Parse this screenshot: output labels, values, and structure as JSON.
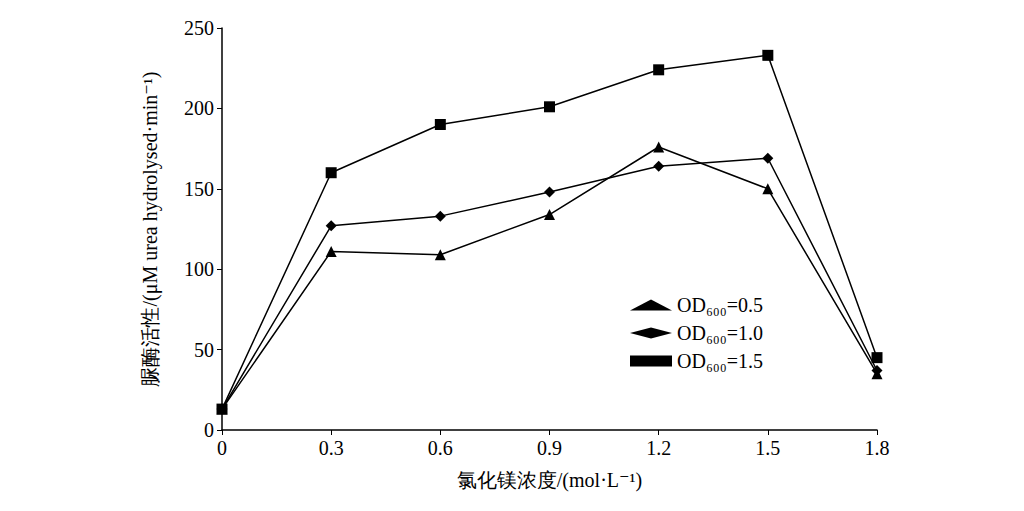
{
  "chart_data": {
    "type": "line",
    "x_label": "氯化镁浓度/(mol·L⁻¹)",
    "y_label": "脲酶活性/(μM urea hydrolysed·min⁻¹)",
    "categories": [
      "0",
      "0.3",
      "0.6",
      "0.9",
      "1.2",
      "1.5",
      "1.8"
    ],
    "ylim": [
      0,
      250
    ],
    "yticks": [
      0,
      50,
      100,
      150,
      200,
      250
    ],
    "grid": false,
    "legend": "lower right",
    "series": [
      {
        "name": "OD₆₀₀=0.5",
        "color": "#000000",
        "marker": "triangle",
        "line_style": "solid",
        "values": [
          13,
          111,
          109,
          134,
          176,
          150,
          35
        ]
      },
      {
        "name": "OD₆₀₀=1.0",
        "color": "#000000",
        "marker": "diamond",
        "line_style": "solid",
        "values": [
          13,
          127,
          133,
          148,
          164,
          169,
          37
        ]
      },
      {
        "name": "OD₆₀₀=1.5",
        "color": "#000000",
        "marker": "square",
        "line_style": "solid",
        "values": [
          13,
          160,
          190,
          201,
          224,
          233,
          45
        ]
      }
    ]
  }
}
